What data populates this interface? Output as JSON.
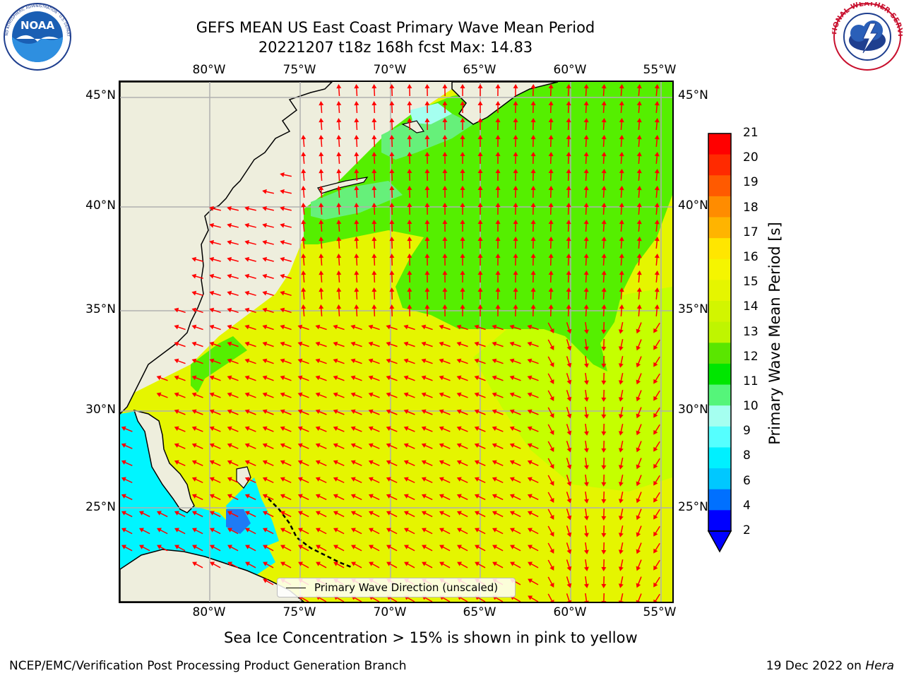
{
  "title": {
    "line1": "GEFS MEAN US East Coast Primary Wave Mean Period",
    "line2": "20221207 t18z 168h fcst   Max: 14.83"
  },
  "logos": {
    "left": {
      "name": "NOAA",
      "arc_text": "NATIONAL OCEANIC AND ATMOSPHERIC ADMINISTRATION · U.S. DEPARTMENT OF COMMERCE"
    },
    "right": {
      "arc_text": "NATIONAL WEATHER SERVICE"
    }
  },
  "map": {
    "lon_labels": [
      "80°W",
      "75°W",
      "70°W",
      "65°W",
      "60°W",
      "55°W"
    ],
    "lat_labels": [
      "45°N",
      "40°N",
      "35°N",
      "30°N",
      "25°N"
    ],
    "colors": {
      "land": "#eeeedd",
      "ocean_main": "#e5f500",
      "ocean_light": "#c5ff00",
      "ocean_green": "#55ef00",
      "ocean_mint": "#66f07a",
      "ocean_cyan": "#00f5ff",
      "ocean_blue": "#1e7bf5",
      "arrow": "#ff0000",
      "grid": "#b0b0b0"
    }
  },
  "legend": {
    "label": "Primary Wave Direction (unscaled)"
  },
  "colorbar": {
    "title": "Primary Wave Mean Period [s]",
    "tick_labels": [
      "21",
      "20",
      "19",
      "18",
      "17",
      "16",
      "15",
      "14",
      "13",
      "12",
      "11",
      "10",
      "9",
      "8",
      "6",
      "4",
      "2"
    ],
    "colors": [
      "#ff0000",
      "#ff2a00",
      "#ff5a00",
      "#ff8c00",
      "#ffb400",
      "#ffe600",
      "#f5f500",
      "#e5f500",
      "#d2f500",
      "#bff500",
      "#5ae600",
      "#00e600",
      "#55f57a",
      "#a5fff0",
      "#55ffff",
      "#00f0ff",
      "#00c8ff",
      "#0070ff",
      "#0000ff"
    ]
  },
  "caption": "Sea Ice Concentration > 15% is shown in pink to yellow",
  "footer": {
    "left": "NCEP/EMC/Verification Post Processing Product Generation Branch",
    "right_prefix": "19 Dec 2022 on ",
    "right_host": "Hera"
  }
}
